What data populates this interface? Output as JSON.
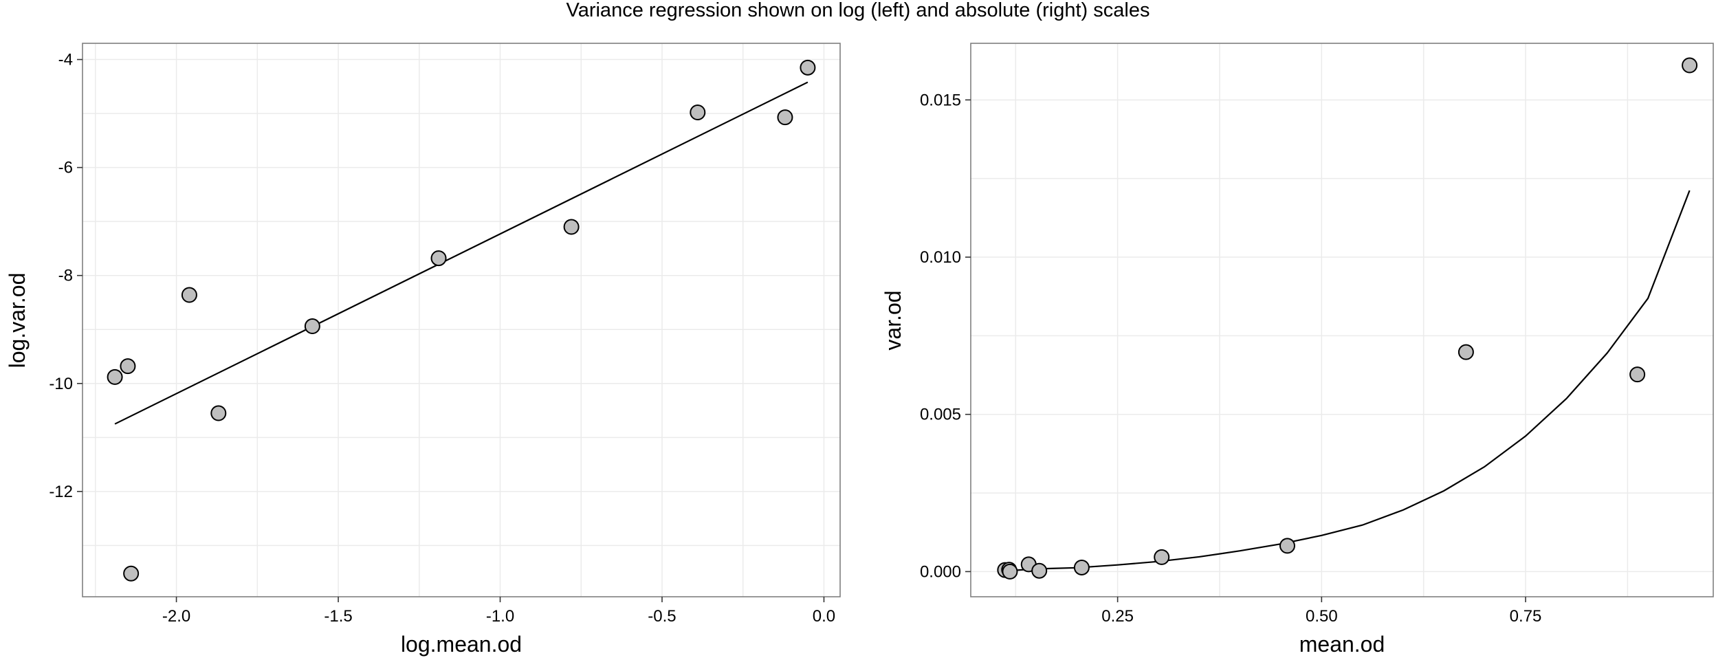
{
  "title": "Variance regression shown on log (left) and absolute (right) scales",
  "chart_data": [
    {
      "type": "scatter",
      "xlabel": "log.mean.od",
      "ylabel": "log.var.od",
      "xlim": [
        -2.29,
        0.05
      ],
      "ylim": [
        -13.95,
        -3.7
      ],
      "xticks": [
        -2.0,
        -1.5,
        -1.0,
        -0.5,
        0.0
      ],
      "xtick_labels": [
        "-2.0",
        "-1.5",
        "-1.0",
        "-0.5",
        "0.0"
      ],
      "yticks": [
        -12,
        -10,
        -8,
        -6,
        -4
      ],
      "ytick_labels": [
        "-12",
        "-10",
        "-8",
        "-6",
        "-4"
      ],
      "grid": true,
      "points": [
        {
          "x": -2.19,
          "y": -9.88
        },
        {
          "x": -2.15,
          "y": -9.68
        },
        {
          "x": -2.14,
          "y": -13.52
        },
        {
          "x": -1.96,
          "y": -8.36
        },
        {
          "x": -1.87,
          "y": -10.55
        },
        {
          "x": -1.58,
          "y": -8.94
        },
        {
          "x": -1.19,
          "y": -7.68
        },
        {
          "x": -0.78,
          "y": -7.1
        },
        {
          "x": -0.39,
          "y": -4.98
        },
        {
          "x": -0.12,
          "y": -5.07
        },
        {
          "x": -0.05,
          "y": -4.15
        }
      ],
      "fit_line": {
        "x": [
          -2.19,
          -0.05
        ],
        "y": [
          -10.75,
          -4.42
        ]
      }
    },
    {
      "type": "scatter",
      "xlabel": "mean.od",
      "ylabel": "var.od",
      "xlim": [
        0.07,
        0.98
      ],
      "ylim": [
        -0.0008,
        0.0168
      ],
      "xticks": [
        0.25,
        0.5,
        0.75
      ],
      "xtick_labels": [
        "0.25",
        "0.50",
        "0.75"
      ],
      "yticks": [
        0.0,
        0.005,
        0.01,
        0.015
      ],
      "ytick_labels": [
        "0.000",
        "0.005",
        "0.010",
        "0.015"
      ],
      "grid": true,
      "points": [
        {
          "x": 0.112,
          "y": 5e-05
        },
        {
          "x": 0.117,
          "y": 6e-05
        },
        {
          "x": 0.118,
          "y": 1.4e-06
        },
        {
          "x": 0.141,
          "y": 0.00023
        },
        {
          "x": 0.154,
          "y": 2.6e-05
        },
        {
          "x": 0.206,
          "y": 0.00013
        },
        {
          "x": 0.304,
          "y": 0.00046
        },
        {
          "x": 0.458,
          "y": 0.00082
        },
        {
          "x": 0.677,
          "y": 0.00698
        },
        {
          "x": 0.887,
          "y": 0.00627
        },
        {
          "x": 0.951,
          "y": 0.0161
        }
      ],
      "fit_curve": {
        "x": [
          0.112,
          0.15,
          0.2,
          0.25,
          0.3,
          0.35,
          0.4,
          0.45,
          0.5,
          0.55,
          0.6,
          0.65,
          0.7,
          0.75,
          0.8,
          0.85,
          0.9,
          0.951
        ],
        "y": [
          2.13e-05,
          8.56e-05,
          0.0001226,
          0.0002125,
          0.000322,
          0.00047,
          0.00066,
          0.00088,
          0.00115,
          0.00148,
          0.00196,
          0.00257,
          0.00334,
          0.00431,
          0.0055,
          0.00695,
          0.00869,
          0.01212
        ]
      }
    }
  ]
}
